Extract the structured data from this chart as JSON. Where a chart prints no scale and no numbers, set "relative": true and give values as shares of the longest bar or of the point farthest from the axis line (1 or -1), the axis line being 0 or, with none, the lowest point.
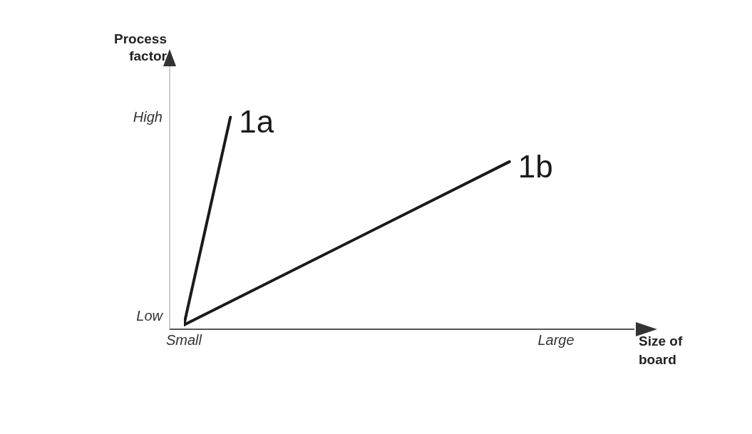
{
  "chart_data": {
    "type": "line",
    "xlabel": "Size of board",
    "ylabel": "Process factor",
    "relative": true,
    "annotations": [
      "Low",
      "High"
    ],
    "categories": [
      "Small",
      null,
      null,
      null,
      null,
      null,
      null,
      null,
      "Large"
    ],
    "series": [
      {
        "name": "1a",
        "color": "#1a1a1a",
        "values": [
          0.02,
          1,
          null,
          null,
          null,
          null,
          null,
          null,
          null
        ]
      },
      {
        "name": "1b",
        "color": "#1a1a1a",
        "values": [
          0.02,
          null,
          null,
          null,
          null,
          null,
          null,
          0.79,
          null
        ]
      }
    ],
    "grid": false,
    "legend": false,
    "marker": "none",
    "line_style": "solid"
  }
}
